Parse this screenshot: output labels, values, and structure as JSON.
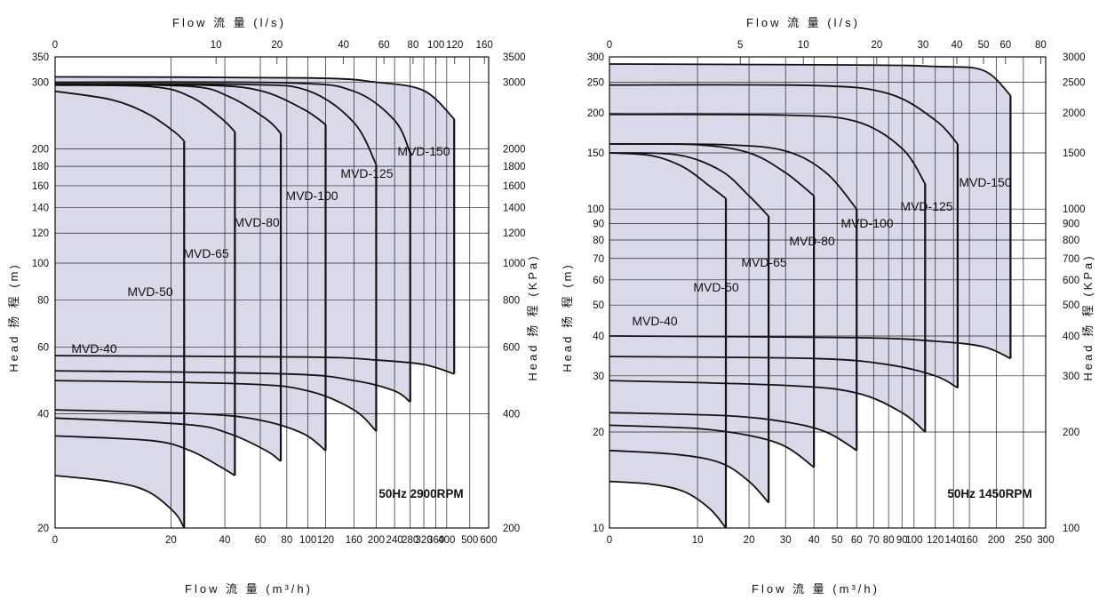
{
  "chart_data": [
    {
      "type": "area",
      "title": "50Hz 2900RPM",
      "top_axis": {
        "label": "Flow 流 量 (l/s)",
        "ticks": [
          "0",
          "10",
          "20",
          "40",
          "60",
          "80",
          "100",
          "120",
          "160"
        ],
        "tick_positions_m3h": [
          0,
          36,
          72,
          144,
          216,
          288,
          360,
          432,
          576
        ]
      },
      "xlabel": "Flow 流 量 (m³/h)",
      "x_ticks": [
        "0",
        "20",
        "40",
        "60",
        "80",
        "100",
        "120",
        "160",
        "200",
        "240",
        "280",
        "320",
        "360",
        "400",
        "500",
        "600"
      ],
      "ylabel_left": "Head 扬 程 (m)",
      "y_ticks_left": [
        "20",
        "40",
        "60",
        "80",
        "100",
        "120",
        "140",
        "160",
        "180",
        "200",
        "300",
        "350"
      ],
      "ylabel_right": "Head 扬 程 (KPa)",
      "y_ticks_right": [
        "200",
        "400",
        "600",
        "800",
        "1000",
        "1200",
        "1400",
        "1600",
        "1800",
        "2000",
        "3000",
        "3500"
      ],
      "xlim": [
        0,
        600
      ],
      "ylim": [
        20,
        350
      ],
      "grid": true,
      "series": [
        {
          "name": "MVD-40",
          "flow_m3h": [
            0,
            7,
            14,
            21,
            24
          ],
          "head_max_m": [
            284,
            270,
            248,
            222,
            210
          ],
          "head_min_m": [
            27.5,
            26.5,
            25,
            22,
            20
          ]
        },
        {
          "name": "MVD-50",
          "flow_m3h": [
            0,
            15,
            26,
            38,
            45
          ],
          "head_max_m": [
            295,
            292,
            275,
            242,
            222
          ],
          "head_min_m": [
            35,
            34,
            32,
            29,
            27.5
          ]
        },
        {
          "name": "MVD-65",
          "flow_m3h": [
            0,
            25,
            42,
            64,
            75
          ],
          "head_max_m": [
            296,
            293,
            275,
            240,
            220
          ],
          "head_min_m": [
            39,
            37.5,
            35.5,
            32,
            30
          ]
        },
        {
          "name": "MVD-80",
          "flow_m3h": [
            0,
            30,
            60,
            95,
            120
          ],
          "head_max_m": [
            296,
            295,
            285,
            255,
            232
          ],
          "head_min_m": [
            41,
            40,
            38.5,
            35.5,
            32
          ]
        },
        {
          "name": "MVD-100",
          "flow_m3h": [
            0,
            50,
            100,
            160,
            200
          ],
          "head_max_m": [
            297,
            296,
            285,
            235,
            182
          ],
          "head_min_m": [
            49,
            48,
            46,
            41,
            36
          ]
        },
        {
          "name": "MVD-125",
          "flow_m3h": [
            0,
            80,
            160,
            240,
            280
          ],
          "head_max_m": [
            300,
            299,
            284,
            238,
            195
          ],
          "head_min_m": [
            52,
            51,
            49,
            46,
            43
          ]
        },
        {
          "name": "MVD-150",
          "flow_m3h": [
            0,
            100,
            200,
            320,
            430
          ],
          "head_max_m": [
            310,
            308,
            300,
            285,
            240
          ],
          "head_min_m": [
            57,
            56.5,
            55.5,
            54,
            51
          ]
        }
      ]
    },
    {
      "type": "area",
      "title": "50Hz 1450RPM",
      "top_axis": {
        "label": "Flow 流 量 (l/s)",
        "ticks": [
          "0",
          "5",
          "10",
          "20",
          "30",
          "40",
          "50",
          "60",
          "80"
        ],
        "tick_positions_m3h": [
          0,
          18,
          36,
          72,
          108,
          144,
          180,
          216,
          288
        ]
      },
      "xlabel": "Flow 流 量 (m³/h)",
      "x_ticks": [
        "0",
        "10",
        "20",
        "30",
        "40",
        "50",
        "60",
        "70",
        "80",
        "90",
        "100",
        "120",
        "140",
        "160",
        "200",
        "250",
        "300"
      ],
      "ylabel_left": "Head 扬 程 (m)",
      "y_ticks_left": [
        "10",
        "20",
        "30",
        "40",
        "50",
        "60",
        "70",
        "80",
        "90",
        "100",
        "150",
        "200",
        "250",
        "300"
      ],
      "ylabel_right": "Head 扬 程 (KPa)",
      "y_ticks_right": [
        "100",
        "200",
        "300",
        "400",
        "500",
        "600",
        "700",
        "800",
        "900",
        "1000",
        "1500",
        "2000",
        "2500",
        "3000"
      ],
      "xlim": [
        0,
        300
      ],
      "ylim": [
        10,
        300
      ],
      "grid": true,
      "series": [
        {
          "name": "MVD-40",
          "flow_m3h": [
            0,
            4,
            8,
            12,
            15
          ],
          "head_max_m": [
            150,
            147,
            135,
            118,
            108
          ],
          "head_min_m": [
            14,
            13.7,
            13,
            11.5,
            10
          ]
        },
        {
          "name": "MVD-50",
          "flow_m3h": [
            0,
            7,
            14,
            20,
            25
          ],
          "head_max_m": [
            150,
            148,
            132,
            110,
            95
          ],
          "head_min_m": [
            17.5,
            17,
            16,
            14,
            12
          ]
        },
        {
          "name": "MVD-65",
          "flow_m3h": [
            0,
            10,
            20,
            30,
            40
          ],
          "head_max_m": [
            160,
            159,
            150,
            130,
            110
          ],
          "head_min_m": [
            21,
            20.5,
            19.5,
            18,
            15.5
          ]
        },
        {
          "name": "MVD-80",
          "flow_m3h": [
            0,
            15,
            30,
            45,
            60
          ],
          "head_max_m": [
            160,
            159,
            152,
            130,
            100
          ],
          "head_min_m": [
            23,
            22.5,
            21.5,
            20,
            17.5
          ]
        },
        {
          "name": "MVD-100",
          "flow_m3h": [
            0,
            30,
            60,
            90,
            110
          ],
          "head_max_m": [
            198,
            197,
            188,
            155,
            120
          ],
          "head_min_m": [
            29,
            28,
            26.5,
            23,
            20
          ]
        },
        {
          "name": "MVD-125",
          "flow_m3h": [
            0,
            40,
            80,
            120,
            145
          ],
          "head_max_m": [
            245,
            244,
            230,
            190,
            160
          ],
          "head_min_m": [
            34.5,
            34,
            32.5,
            30,
            27.5
          ]
        },
        {
          "name": "MVD-150",
          "flow_m3h": [
            0,
            60,
            120,
            180,
            225
          ],
          "head_max_m": [
            285,
            283,
            280,
            272,
            227
          ],
          "head_min_m": [
            40,
            39.5,
            38.5,
            37,
            34
          ]
        }
      ]
    }
  ]
}
